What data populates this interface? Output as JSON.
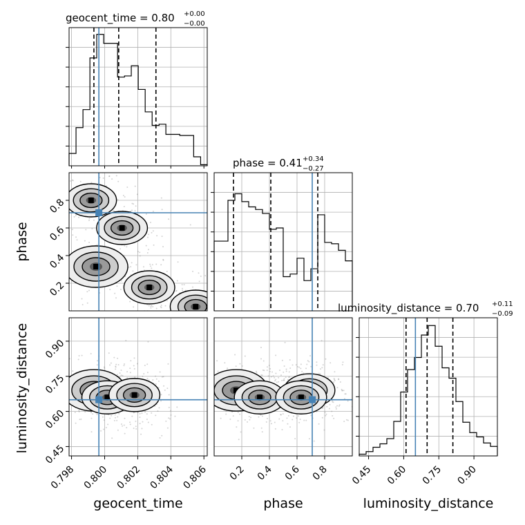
{
  "chart_data": {
    "type": "corner",
    "parameters": [
      "geocent_time",
      "phase",
      "luminosity_distance"
    ],
    "truths": {
      "geocent_time": 0.79965,
      "phase": 0.71,
      "luminosity_distance": 0.65
    },
    "axes": {
      "geocent_time": {
        "range": [
          0.79785,
          0.8062
        ],
        "ticks": [
          0.798,
          0.8,
          0.802,
          0.804,
          0.806
        ],
        "ticklabels": [
          "0.798",
          "0.800",
          "0.802",
          "0.804",
          "0.806"
        ]
      },
      "phase": {
        "range": [
          0.0,
          1.0
        ],
        "ticks": [
          0.2,
          0.4,
          0.6,
          0.8
        ],
        "ticklabels": [
          "0.2",
          "0.4",
          "0.6",
          "0.8"
        ]
      },
      "luminosity_distance": {
        "range": [
          0.41,
          1.0
        ],
        "ticks": [
          0.45,
          0.6,
          0.75,
          0.9
        ],
        "ticklabels": [
          "0.45",
          "0.60",
          "0.75",
          "0.90"
        ]
      }
    },
    "marginals": [
      {
        "parameter": "geocent_time",
        "title_main": "geocent_time = 0.80",
        "title_upper": "+0.00",
        "title_lower": "−0.00",
        "quantiles": [
          0.79935,
          0.80085,
          0.8031
        ],
        "bin_edges": [
          0.79785,
          0.79827,
          0.79869,
          0.79911,
          0.79952,
          0.79994,
          0.80036,
          0.80078,
          0.8012,
          0.80161,
          0.80203,
          0.80245,
          0.80287,
          0.80329,
          0.8037,
          0.80412,
          0.80454,
          0.80496,
          0.80538,
          0.8058,
          0.8062
        ],
        "counts": [
          11,
          34,
          50,
          96,
          117,
          109,
          109,
          79,
          80,
          89,
          68,
          48,
          36,
          37,
          28,
          28,
          27,
          27,
          8,
          1
        ],
        "ylim": [
          0,
          123
        ]
      },
      {
        "parameter": "phase",
        "title_main": "phase = 0.41",
        "title_upper": "+0.34",
        "title_lower": "−0.27",
        "quantiles": [
          0.14,
          0.41,
          0.75
        ],
        "bin_edges": [
          0,
          0.05,
          0.1,
          0.15,
          0.2,
          0.25,
          0.3,
          0.35,
          0.4,
          0.45,
          0.5,
          0.55,
          0.6,
          0.65,
          0.7,
          0.75,
          0.8,
          0.85,
          0.9,
          0.95,
          1.0
        ],
        "counts": [
          53,
          53,
          84,
          89,
          83,
          79,
          77,
          74,
          62,
          63,
          26,
          28,
          40,
          23,
          32,
          73,
          52,
          51,
          46,
          38
        ],
        "ylim": [
          0,
          105
        ]
      },
      {
        "parameter": "luminosity_distance",
        "title_main": "luminosity_distance = 0.70",
        "title_upper": "+0.11",
        "title_lower": "−0.09",
        "quantiles": [
          0.61,
          0.7,
          0.81
        ],
        "bin_edges": [
          0.41,
          0.4395,
          0.469,
          0.4985,
          0.528,
          0.5575,
          0.587,
          0.6165,
          0.646,
          0.6755,
          0.705,
          0.7345,
          0.764,
          0.7935,
          0.823,
          0.8525,
          0.882,
          0.9115,
          0.941,
          0.9705,
          1.0
        ],
        "counts": [
          2,
          5,
          10,
          14,
          20,
          40,
          74,
          100,
          114,
          140,
          151,
          127,
          102,
          90,
          63,
          39,
          27,
          22,
          15,
          11
        ],
        "ylim": [
          0,
          160
        ]
      }
    ],
    "contours": [
      {
        "x": "geocent_time",
        "y": "phase",
        "truth_point": [
          0.79965,
          0.71
        ],
        "density_modes": [
          [
            0.79948,
            0.32
          ],
          [
            0.80105,
            0.6
          ],
          [
            0.79918,
            0.8
          ],
          [
            0.8027,
            0.17
          ],
          [
            0.8055,
            0.03
          ]
        ],
        "levels": [
          "outer",
          "middle",
          "inner"
        ]
      },
      {
        "x": "geocent_time",
        "y": "luminosity_distance",
        "truth_point": [
          0.79965,
          0.65
        ],
        "density_modes": [
          [
            0.79935,
            0.69
          ],
          [
            0.80016,
            0.66
          ],
          [
            0.8018,
            0.67
          ]
        ],
        "levels": [
          "outer",
          "middle",
          "inner"
        ]
      },
      {
        "x": "phase",
        "y": "luminosity_distance",
        "truth_point": [
          0.71,
          0.65
        ],
        "density_modes": [
          [
            0.16,
            0.69
          ],
          [
            0.33,
            0.66
          ],
          [
            0.69,
            0.69
          ],
          [
            0.63,
            0.66
          ]
        ],
        "levels": [
          "outer",
          "middle",
          "inner"
        ]
      }
    ],
    "axis_labels": {
      "x": [
        "geocent_time",
        "phase",
        "luminosity_distance"
      ],
      "y": [
        "phase",
        "luminosity_distance"
      ]
    },
    "colors": {
      "truth": "#4682b4",
      "contour": "#000000",
      "scatter": "#808080",
      "grid": "#b0b0b0"
    },
    "grid": true
  }
}
